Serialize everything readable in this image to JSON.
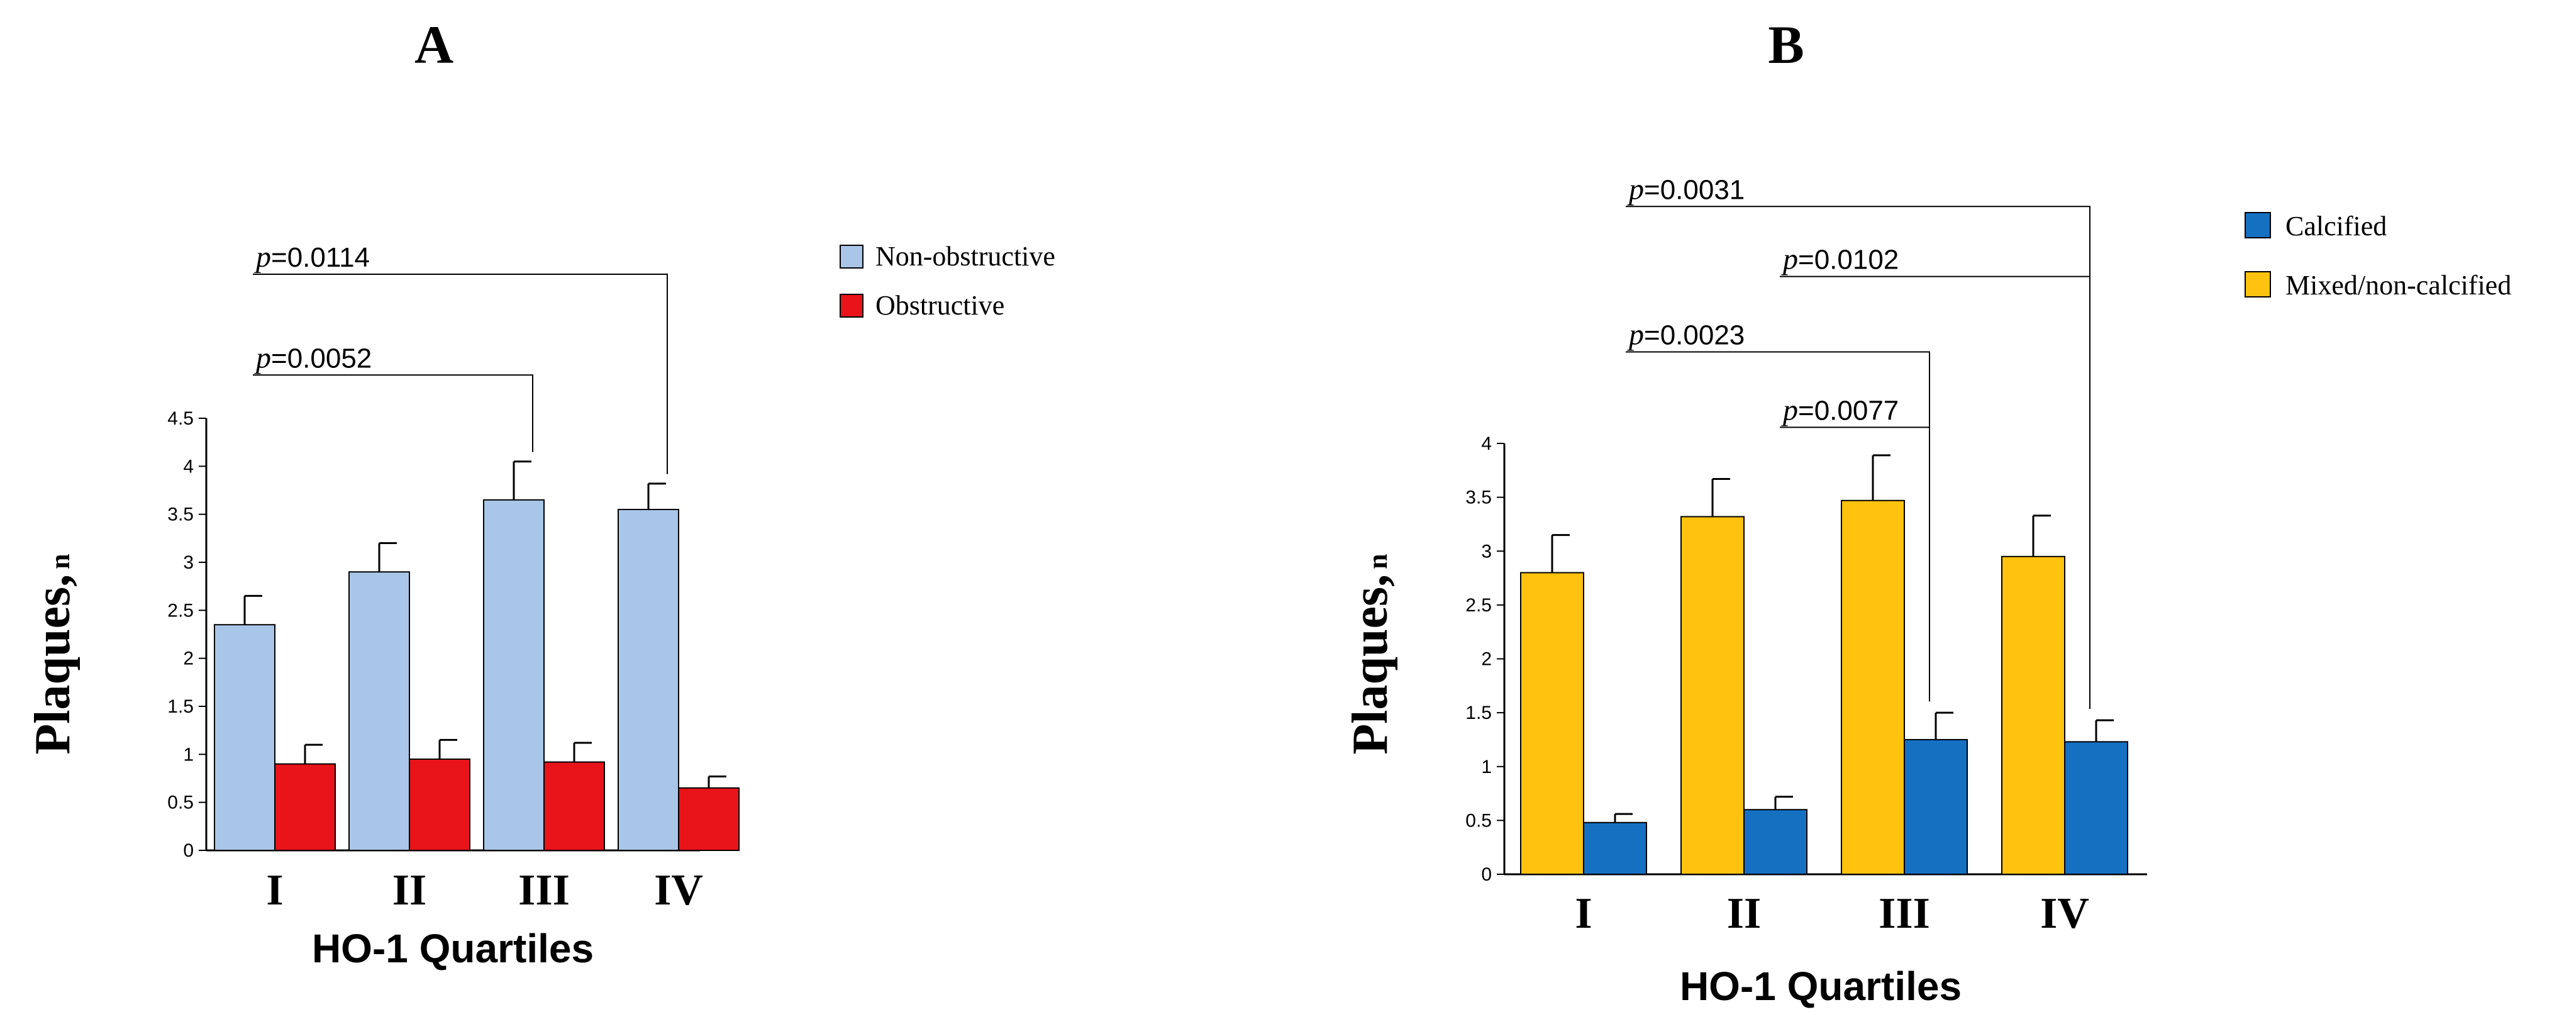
{
  "chart_data": [
    {
      "type": "bar",
      "panel": "A",
      "categories": [
        "I",
        "II",
        "III",
        "IV"
      ],
      "series": [
        {
          "name": "Non-obstructive",
          "color": "#a9c6e8",
          "values": [
            2.35,
            2.9,
            3.65,
            3.55
          ],
          "errors": [
            0.3,
            0.3,
            0.4,
            0.27
          ]
        },
        {
          "name": "Obstructive",
          "color": "#e8141a",
          "values": [
            0.9,
            0.95,
            0.92,
            0.65
          ],
          "errors": [
            0.2,
            0.2,
            0.2,
            0.12
          ]
        }
      ],
      "ylim": [
        0,
        4.5
      ],
      "yticks": [
        "0",
        "0.5",
        "1",
        "1.5",
        "2",
        "2.5",
        "3",
        "3.5",
        "4",
        "4.5"
      ],
      "xlabel": "HO-1 Quartiles",
      "ylabel": "Plaques,",
      "ylabel_sub": "n",
      "significance": [
        {
          "label_p": "p",
          "label_value": "=0.0052",
          "from": 0,
          "to": 2,
          "level": 4.95
        },
        {
          "label_p": "p",
          "label_value": "=0.0114",
          "from": 0,
          "to": 3,
          "level": 6.0
        }
      ],
      "legend": [
        "Non-obstructive",
        "Obstructive"
      ]
    },
    {
      "type": "bar",
      "panel": "B",
      "categories": [
        "I",
        "II",
        "III",
        "IV"
      ],
      "series": [
        {
          "name": "Mixed/non-calcified",
          "color": "#ffc20e",
          "values": [
            2.8,
            3.32,
            3.47,
            2.95
          ],
          "errors": [
            0.35,
            0.35,
            0.42,
            0.38
          ]
        },
        {
          "name": "Calcified",
          "color": "#1570c2",
          "values": [
            0.48,
            0.6,
            1.25,
            1.23
          ],
          "errors": [
            0.08,
            0.12,
            0.25,
            0.2
          ]
        }
      ],
      "ylim": [
        0,
        4
      ],
      "yticks": [
        "0",
        "0.5",
        "1",
        "1.5",
        "2",
        "2.5",
        "3",
        "3.5",
        "4"
      ],
      "xlabel": "HO-1 Quartiles",
      "ylabel": "Plaques,",
      "ylabel_sub": "n",
      "significance": [
        {
          "label_p": "p",
          "label_value": "=0.0077",
          "from": 1,
          "to": 2,
          "level": 4.15
        },
        {
          "label_p": "p",
          "label_value": "=0.0023",
          "from": 0,
          "to": 2,
          "level": 4.85
        },
        {
          "label_p": "p",
          "label_value": "=0.0102",
          "from": 1,
          "to": 3,
          "level": 5.55
        },
        {
          "label_p": "p",
          "label_value": "=0.0031",
          "from": 0,
          "to": 3,
          "level": 6.2
        }
      ],
      "legend": [
        "Calcified",
        "Mixed/non-calcified"
      ]
    }
  ]
}
